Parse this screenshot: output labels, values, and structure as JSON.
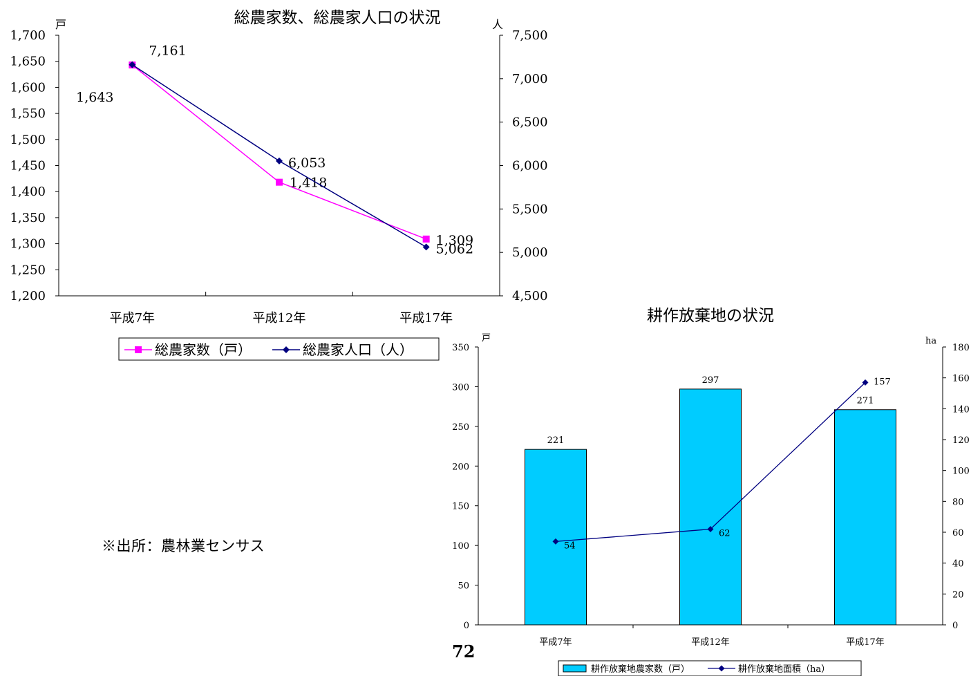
{
  "chart_data": [
    {
      "type": "line",
      "title": "総農家数、総農家人口の状況",
      "categories": [
        "平成7年",
        "平成12年",
        "平成17年"
      ],
      "y_left_unit": "戸",
      "y_right_unit": "人",
      "y_left_ticks": [
        "1,700",
        "1,650",
        "1,600",
        "1,550",
        "1,500",
        "1,450",
        "1,400",
        "1,350",
        "1,300",
        "1,250",
        "1,200"
      ],
      "y_right_ticks": [
        "7,500",
        "7,000",
        "6,500",
        "6,000",
        "5,500",
        "5,000",
        "4,500"
      ],
      "ylim_left": [
        1200,
        1700
      ],
      "ylim_right": [
        4500,
        7500
      ],
      "series": [
        {
          "name": "総農家数（戸）",
          "axis": "left",
          "color": "#ff00ff",
          "marker": "square",
          "values": [
            1643,
            1418,
            1309
          ],
          "labels": [
            "1,643",
            "1,418",
            "1,309"
          ]
        },
        {
          "name": "総農家人口（人）",
          "axis": "right",
          "color": "#000080",
          "marker": "diamond",
          "values": [
            7161,
            6053,
            5062
          ],
          "labels": [
            "7,161",
            "6,053",
            "5,062"
          ]
        }
      ],
      "legend": {
        "position": "bottom"
      }
    },
    {
      "type": "bar",
      "title": "耕作放棄地の状況",
      "categories": [
        "平成7年",
        "平成12年",
        "平成17年"
      ],
      "y_left_unit": "戸",
      "y_right_unit": "ha",
      "y_left_ticks": [
        "350",
        "300",
        "250",
        "200",
        "150",
        "100",
        "50",
        "0"
      ],
      "y_right_ticks": [
        "180",
        "160",
        "140",
        "120",
        "100",
        "80",
        "60",
        "40",
        "20",
        "0"
      ],
      "ylim_left": [
        0,
        350
      ],
      "ylim_right": [
        0,
        180
      ],
      "series": [
        {
          "name": "耕作放棄地農家数（戸）",
          "type": "bar",
          "axis": "left",
          "color": "#00ccff",
          "values": [
            221,
            297,
            271
          ],
          "labels": [
            "221",
            "297",
            "271"
          ]
        },
        {
          "name": "耕作放棄地面積（ha）",
          "type": "line",
          "axis": "right",
          "color": "#000080",
          "marker": "diamond",
          "values": [
            54,
            62,
            157
          ],
          "labels": [
            "54",
            "62",
            "157"
          ]
        }
      ],
      "legend": {
        "position": "bottom"
      }
    }
  ],
  "note": "※出所：農林業センサス",
  "page_number": "72"
}
